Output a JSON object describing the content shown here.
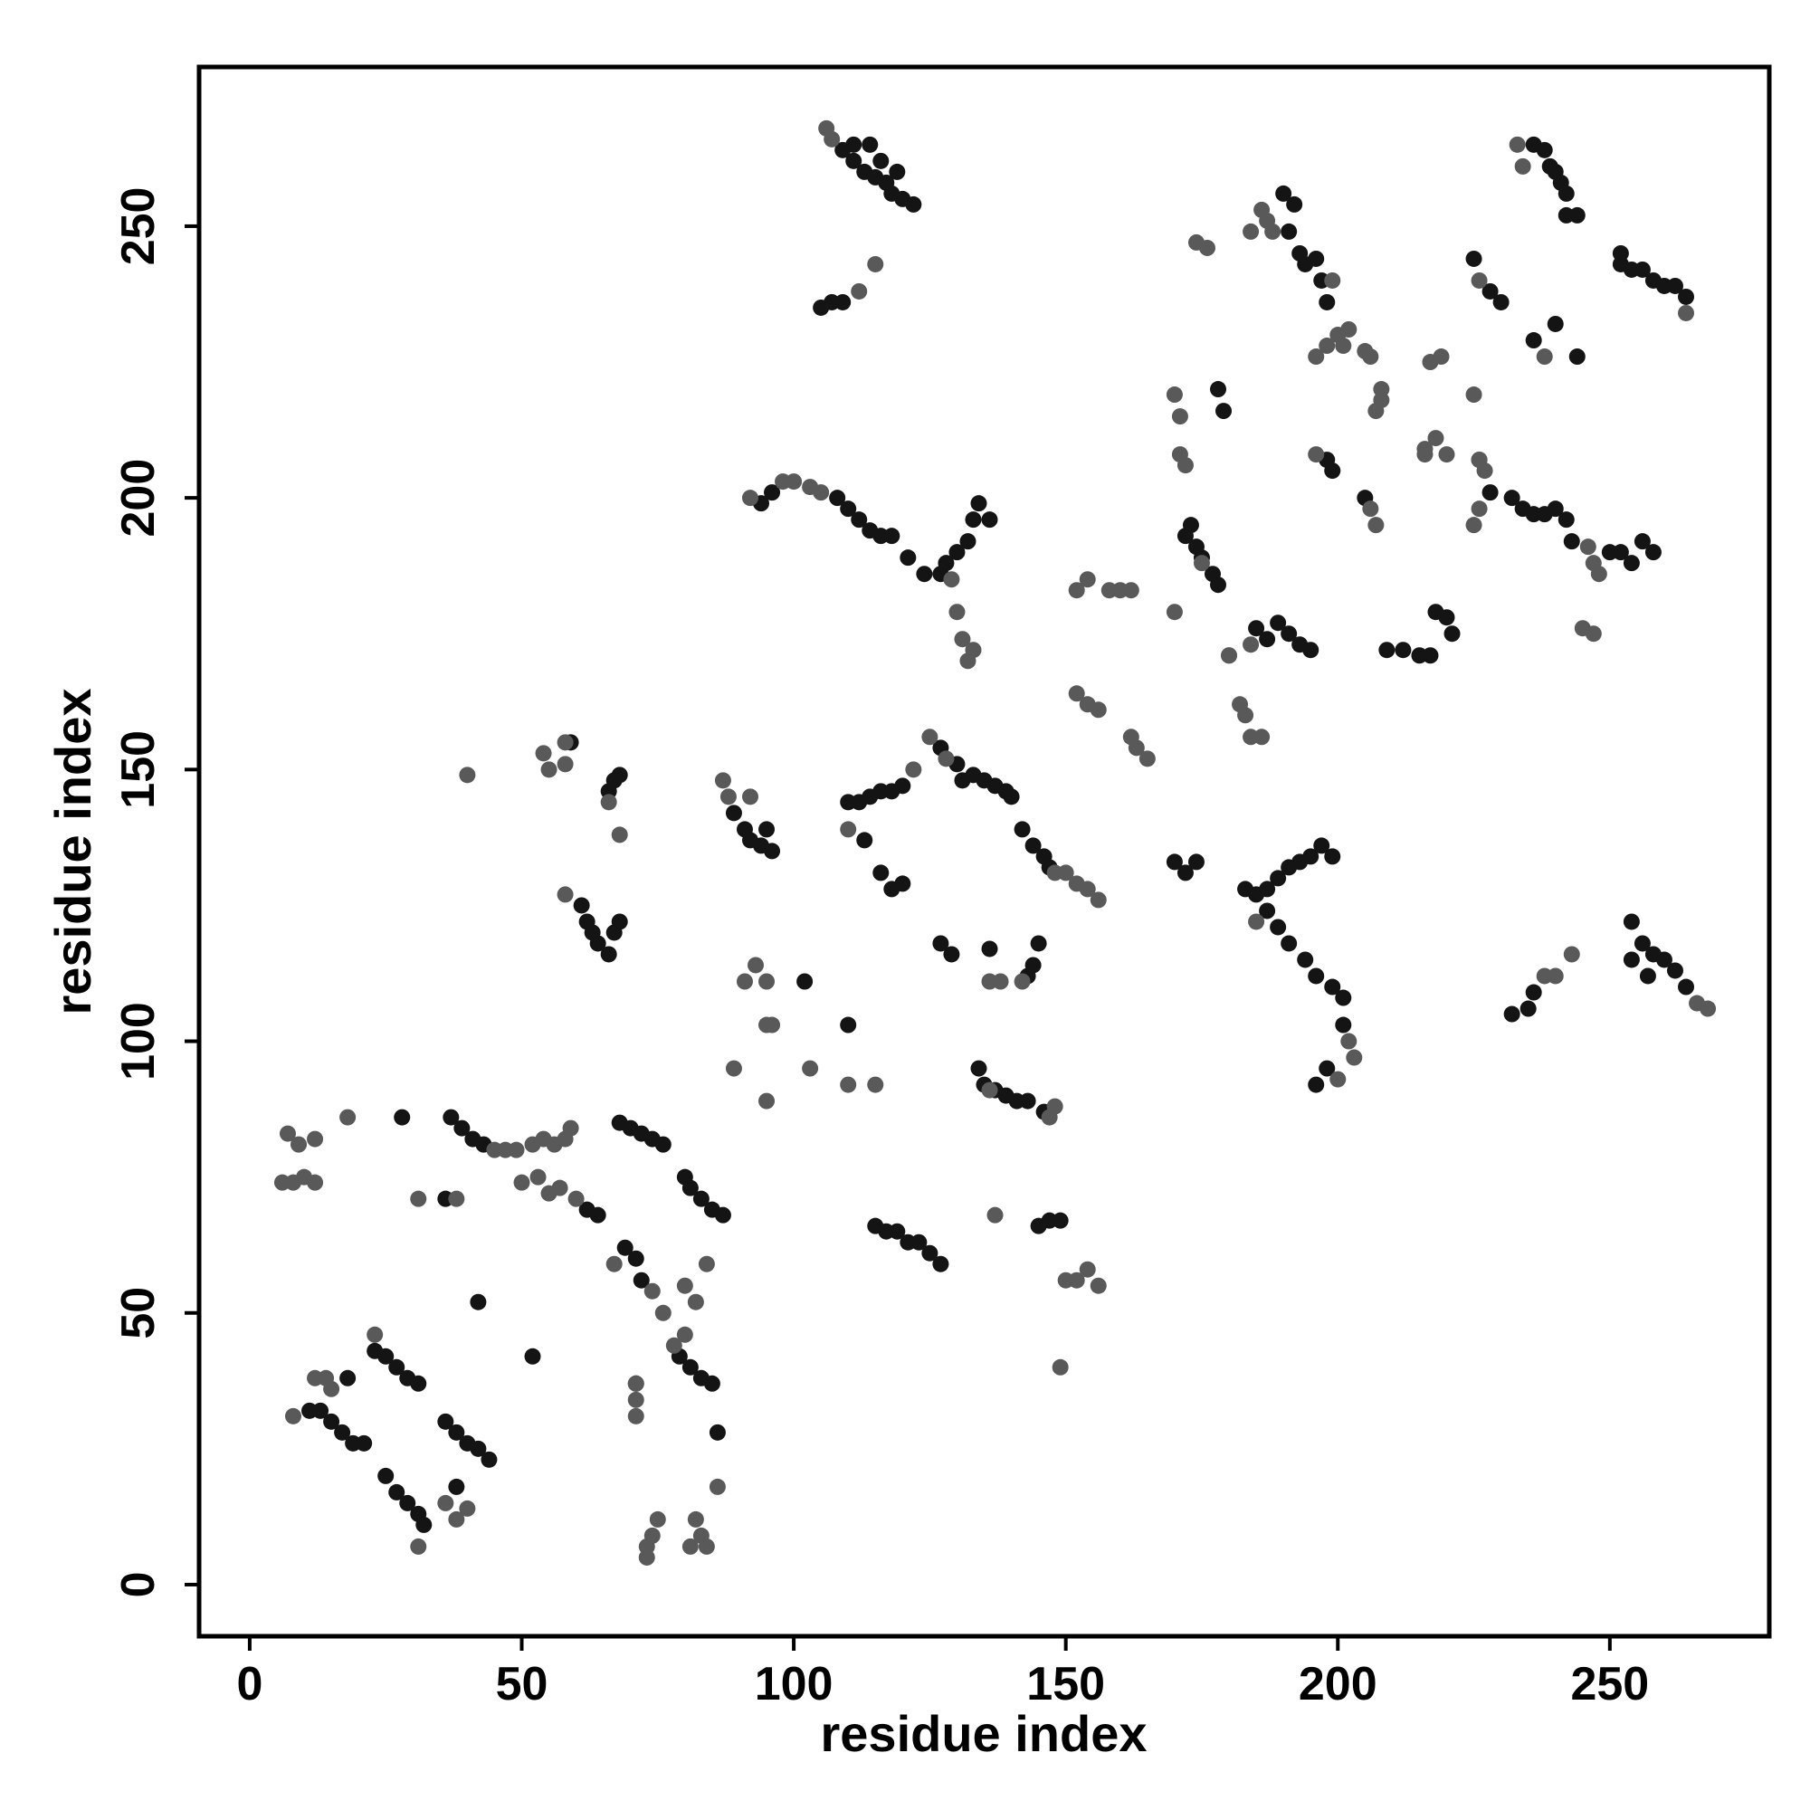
{
  "chart_data": {
    "type": "scatter",
    "xlabel": "residue index",
    "ylabel": "residue index",
    "xlim": [
      -9.3,
      279.3
    ],
    "ylim": [
      -9.5,
      279.3
    ],
    "xticks": [
      0,
      50,
      100,
      150,
      200,
      250
    ],
    "yticks": [
      0,
      50,
      100,
      150,
      200,
      250
    ],
    "series": [
      {
        "color": "#141414",
        "x": [
          109,
          111,
          113,
          115,
          117,
          118,
          120,
          122,
          111,
          114,
          116,
          119,
          105,
          107,
          109,
          236,
          238,
          239,
          240,
          241,
          242,
          242,
          244,
          252,
          252,
          254,
          256,
          258,
          260,
          262,
          264,
          225,
          228,
          230,
          236,
          240,
          244,
          190,
          192,
          191,
          193,
          194,
          196,
          197,
          198,
          178,
          179,
          226,
          228,
          232,
          234,
          236,
          238,
          240,
          242,
          243,
          250,
          252,
          254,
          256,
          258,
          198,
          199,
          205,
          172,
          173,
          174,
          175,
          177,
          178,
          185,
          187,
          189,
          191,
          193,
          195,
          209,
          212,
          215,
          217,
          218,
          220,
          221,
          94,
          96,
          108,
          110,
          112,
          114,
          116,
          118,
          121,
          124,
          127,
          128,
          130,
          132,
          133,
          134,
          136,
          127,
          130,
          131,
          133,
          135,
          137,
          139,
          140,
          142,
          144,
          146,
          147,
          110,
          112,
          114,
          116,
          118,
          120,
          113,
          116,
          118,
          120,
          127,
          129,
          136,
          143,
          144,
          145,
          134,
          135,
          137,
          139,
          141,
          143,
          146,
          115,
          117,
          119,
          121,
          123,
          125,
          127,
          145,
          147,
          149,
          59,
          66,
          67,
          68,
          61,
          62,
          63,
          64,
          66,
          67,
          68,
          89,
          91,
          92,
          94,
          95,
          96,
          28,
          37,
          39,
          41,
          43,
          68,
          70,
          72,
          74,
          76,
          80,
          81,
          83,
          85,
          87,
          62,
          64,
          36,
          42,
          52,
          69,
          71,
          72,
          79,
          81,
          83,
          85,
          71,
          86,
          23,
          25,
          27,
          29,
          31,
          11,
          13,
          15,
          17,
          19,
          21,
          18,
          36,
          38,
          40,
          42,
          44,
          25,
          27,
          29,
          31,
          32,
          38,
          102,
          110,
          170,
          172,
          174,
          183,
          185,
          187,
          189,
          191,
          193,
          195,
          197,
          199,
          187,
          189,
          191,
          194,
          196,
          199,
          201,
          201,
          198,
          196,
          254,
          256,
          258,
          260,
          262,
          264,
          254,
          257,
          232,
          235,
          236
        ],
        "values": [
          264,
          262,
          260,
          259,
          258,
          256,
          255,
          254,
          265,
          265,
          262,
          260,
          235,
          236,
          236,
          265,
          264,
          261,
          260,
          258,
          256,
          252,
          252,
          245,
          243,
          242,
          242,
          240,
          239,
          239,
          237,
          244,
          238,
          236,
          229,
          232,
          226,
          256,
          254,
          249,
          245,
          243,
          244,
          240,
          236,
          220,
          216,
          207,
          201,
          200,
          198,
          197,
          197,
          198,
          196,
          192,
          190,
          190,
          188,
          192,
          190,
          207,
          205,
          200,
          193,
          195,
          191,
          189,
          186,
          184,
          176,
          174,
          177,
          175,
          173,
          172,
          172,
          172,
          171,
          171,
          179,
          178,
          175,
          199,
          201,
          200,
          198,
          196,
          194,
          193,
          193,
          189,
          186,
          186,
          188,
          190,
          192,
          196,
          199,
          196,
          154,
          151,
          148,
          149,
          148,
          147,
          146,
          145,
          139,
          136,
          134,
          132,
          144,
          144,
          145,
          146,
          146,
          147,
          137,
          131,
          128,
          129,
          118,
          116,
          117,
          112,
          114,
          118,
          95,
          92,
          91,
          90,
          89,
          89,
          87,
          66,
          65,
          65,
          63,
          63,
          61,
          59,
          66,
          67,
          67,
          155,
          146,
          148,
          149,
          125,
          122,
          120,
          118,
          116,
          120,
          122,
          142,
          139,
          137,
          136,
          139,
          135,
          86,
          86,
          84,
          82,
          81,
          85,
          84,
          83,
          82,
          81,
          75,
          73,
          71,
          69,
          68,
          69,
          68,
          71,
          52,
          42,
          62,
          60,
          56,
          42,
          40,
          38,
          37,
          37,
          28,
          43,
          42,
          40,
          38,
          37,
          32,
          32,
          30,
          28,
          26,
          26,
          38,
          30,
          28,
          26,
          25,
          23,
          20,
          17,
          15,
          13,
          11,
          18,
          111,
          103,
          133,
          131,
          133,
          128,
          127,
          128,
          130,
          132,
          133,
          134,
          136,
          134,
          124,
          121,
          118,
          115,
          112,
          110,
          108,
          103,
          95,
          92,
          122,
          118,
          116,
          115,
          113,
          110,
          115,
          112,
          105,
          106,
          109
        ]
      },
      {
        "color": "#595959",
        "x": [
          106,
          107,
          112,
          115,
          233,
          234,
          226,
          264,
          238,
          184,
          186,
          187,
          188,
          199,
          200,
          201,
          202,
          196,
          198,
          205,
          206,
          174,
          176,
          170,
          171,
          208,
          207,
          208,
          217,
          219,
          225,
          216,
          218,
          216,
          220,
          226,
          227,
          246,
          247,
          225,
          226,
          245,
          247,
          248,
          196,
          206,
          207,
          171,
          172,
          170,
          175,
          158,
          160,
          162,
          152,
          154,
          184,
          180,
          182,
          183,
          184,
          186,
          152,
          154,
          156,
          162,
          163,
          165,
          92,
          98,
          100,
          103,
          105,
          129,
          130,
          131,
          132,
          133,
          125,
          128,
          148,
          150,
          152,
          154,
          156,
          122,
          110,
          136,
          138,
          142,
          147,
          148,
          137,
          150,
          152,
          154,
          156,
          149,
          54,
          55,
          58,
          58,
          66,
          68,
          58,
          87,
          88,
          92,
          40,
          18,
          45,
          47,
          49,
          52,
          54,
          56,
          58,
          59,
          6,
          8,
          10,
          12,
          7,
          9,
          12,
          60,
          57,
          53,
          55,
          50,
          31,
          38,
          67,
          71,
          74,
          76,
          80,
          82,
          84,
          80,
          78,
          71,
          71,
          86,
          8,
          12,
          14,
          15,
          23,
          31,
          36,
          38,
          40,
          73,
          74,
          75,
          73,
          82,
          83,
          84,
          81,
          89,
          95,
          96,
          91,
          93,
          95,
          103,
          110,
          115,
          95,
          180,
          185,
          202,
          203,
          200,
          266,
          268,
          238,
          240,
          243,
          136
        ],
        "values": [
          268,
          266,
          238,
          243,
          265,
          261,
          240,
          234,
          226,
          249,
          253,
          251,
          249,
          240,
          230,
          228,
          231,
          226,
          228,
          227,
          226,
          247,
          246,
          219,
          215,
          220,
          216,
          218,
          225,
          226,
          219,
          209,
          211,
          208,
          208,
          207,
          205,
          191,
          188,
          195,
          198,
          176,
          175,
          186,
          208,
          198,
          195,
          208,
          206,
          179,
          188,
          183,
          183,
          183,
          183,
          185,
          173,
          171,
          162,
          160,
          156,
          156,
          164,
          162,
          161,
          156,
          154,
          152,
          200,
          203,
          203,
          202,
          201,
          185,
          179,
          174,
          170,
          172,
          156,
          152,
          131,
          131,
          129,
          128,
          126,
          150,
          139,
          111,
          111,
          111,
          86,
          88,
          68,
          56,
          56,
          58,
          55,
          40,
          153,
          150,
          155,
          151,
          144,
          138,
          127,
          148,
          145,
          145,
          149,
          86,
          80,
          80,
          80,
          81,
          82,
          81,
          82,
          84,
          74,
          74,
          75,
          74,
          83,
          81,
          82,
          71,
          73,
          75,
          72,
          74,
          71,
          71,
          59,
          37,
          54,
          50,
          55,
          52,
          59,
          46,
          44,
          34,
          31,
          18,
          31,
          38,
          38,
          36,
          46,
          7,
          15,
          12,
          14,
          7,
          9,
          12,
          5,
          12,
          9,
          7,
          7,
          95,
          103,
          103,
          111,
          114,
          111,
          95,
          92,
          92,
          89,
          171,
          122,
          100,
          97,
          93,
          107,
          106,
          112,
          112,
          116,
          91
        ]
      }
    ]
  }
}
